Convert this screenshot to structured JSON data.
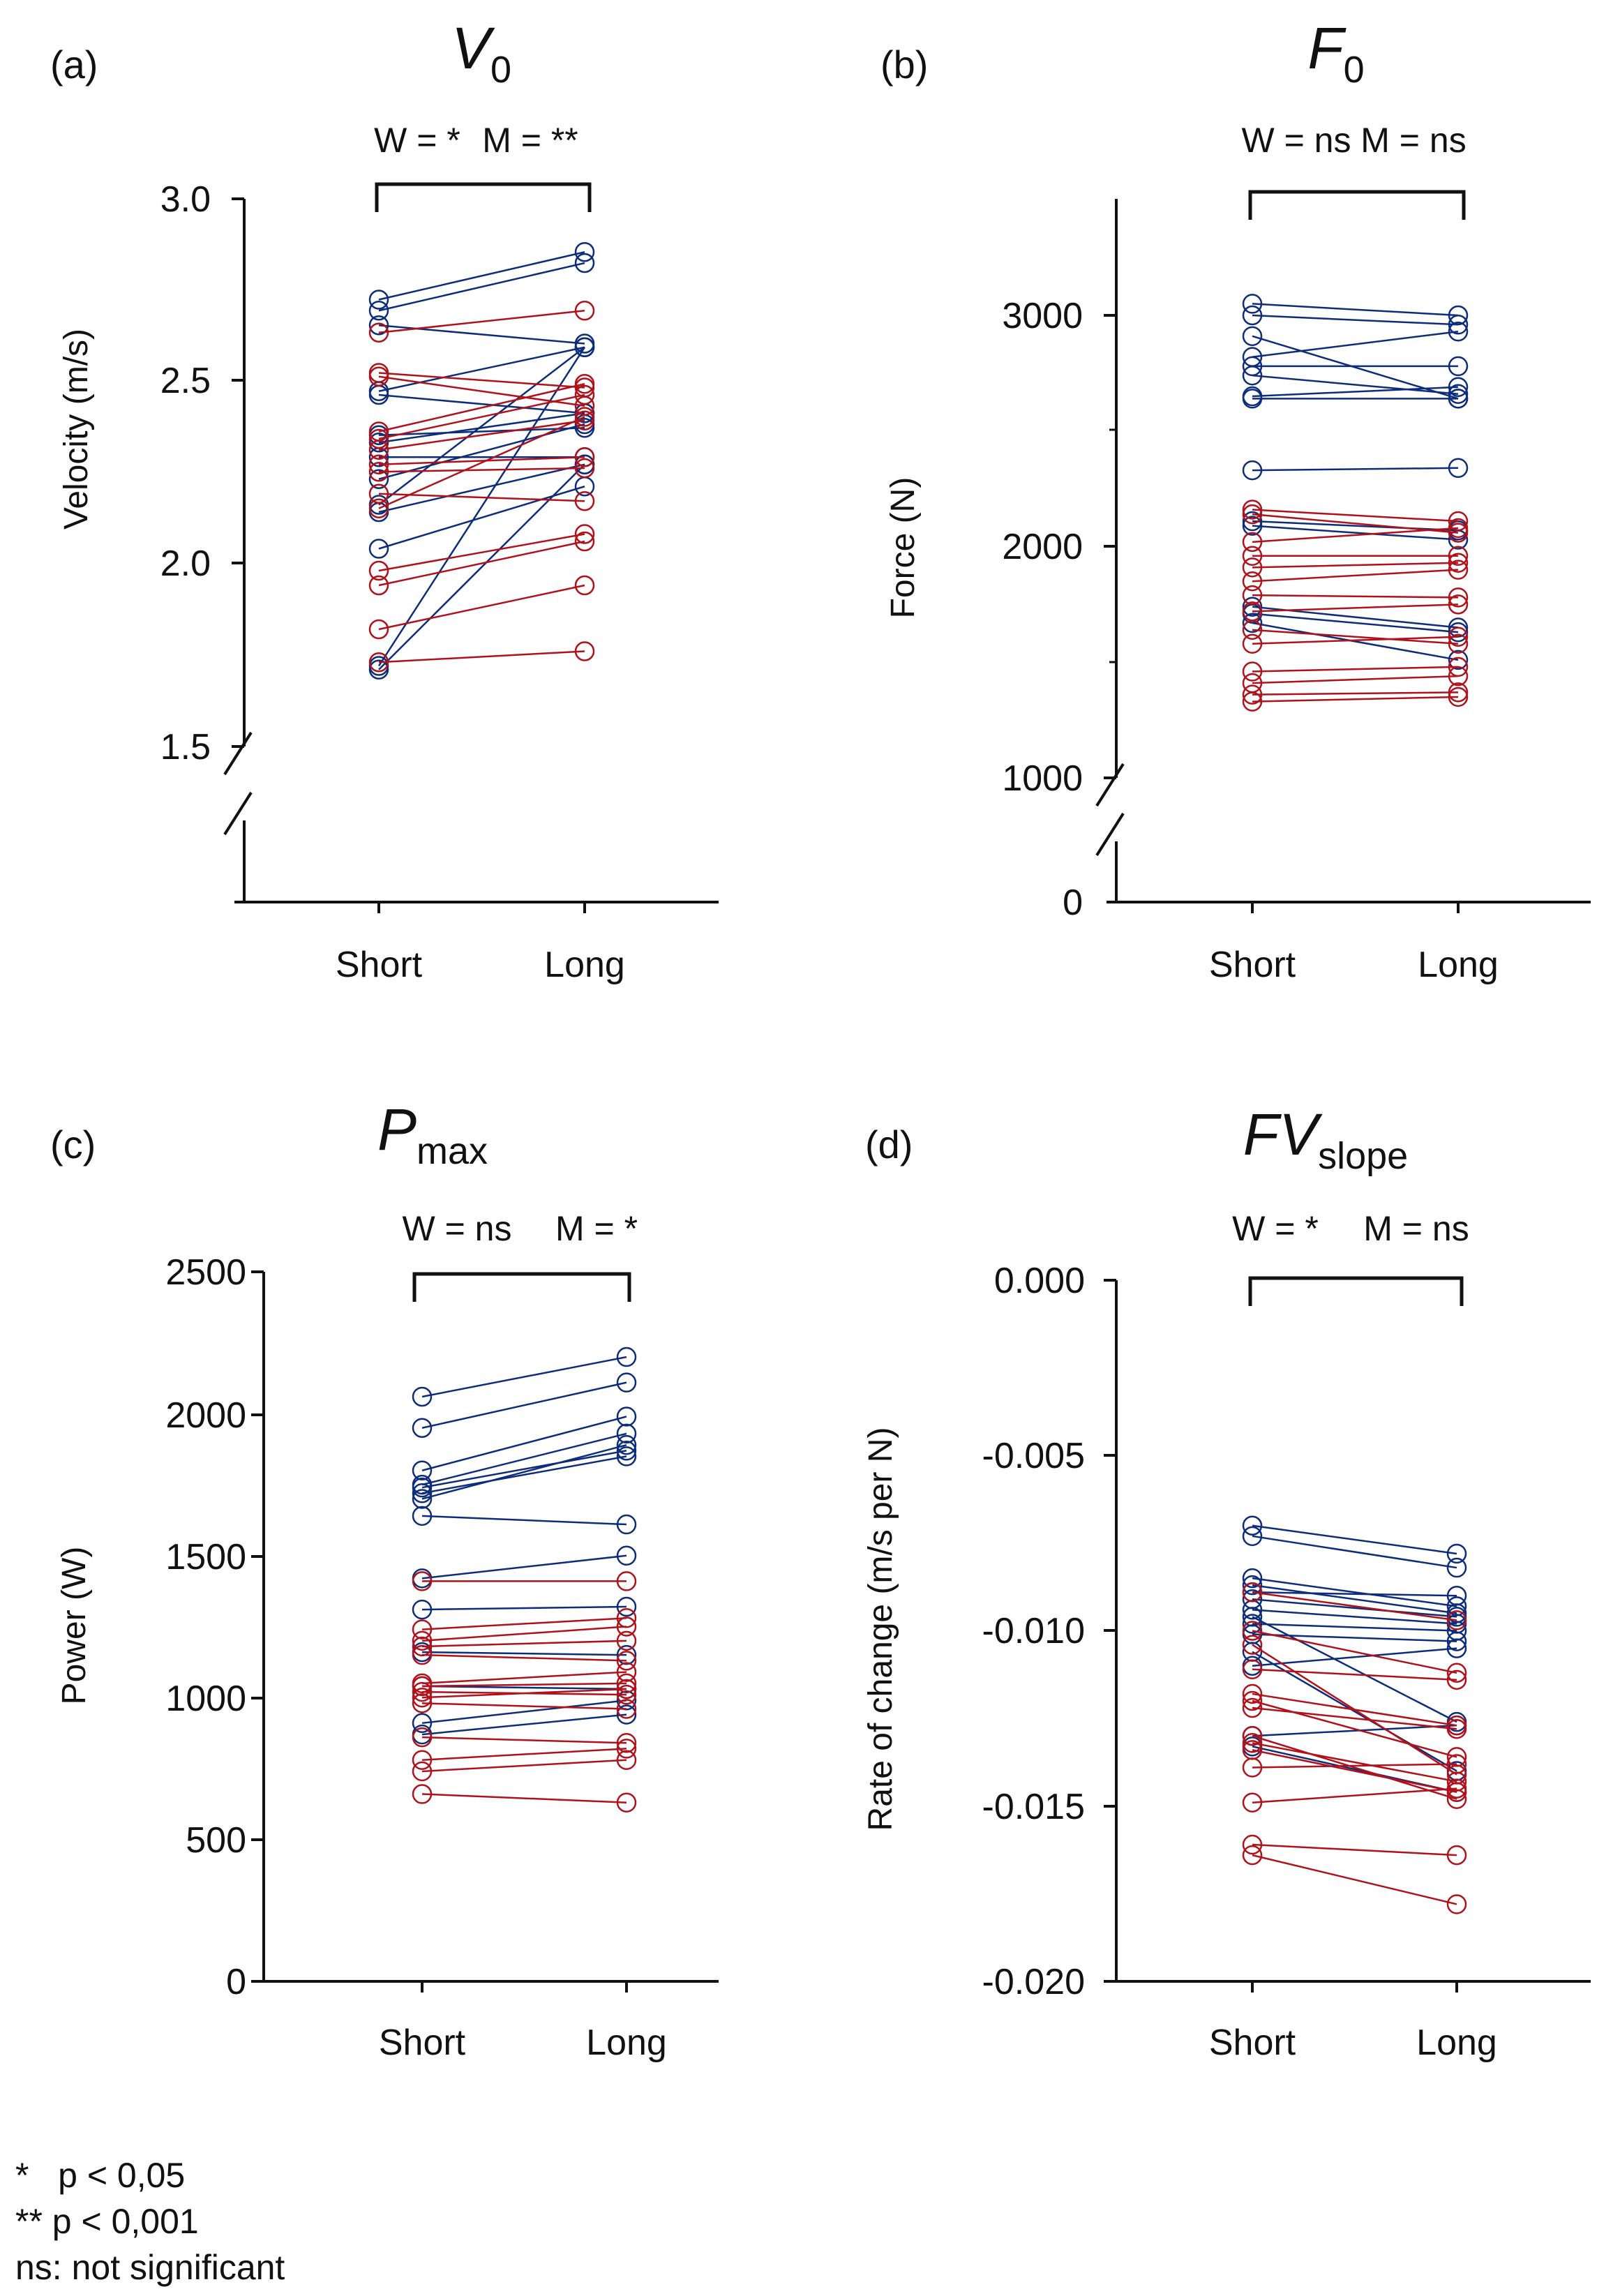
{
  "colors": {
    "women": "#b0121b",
    "men": "#0d2d7a",
    "axis": "#111111"
  },
  "legend": {
    "line1": "*   p < 0,05",
    "line2": "** p < 0,001",
    "line3": "ns: not significant"
  },
  "chart_data": [
    {
      "panel": "(a)",
      "type": "line",
      "title": "V",
      "title_sub": "0",
      "annotation_w": "W = *",
      "annotation_m": "M = **",
      "ylabel": "Velocity (m/s)",
      "categories": [
        "Short",
        "Long"
      ],
      "ylim": [
        1.5,
        3.0
      ],
      "yticks": [
        "1.5",
        "2.0",
        "2.5",
        "3.0"
      ],
      "axis_break": true,
      "series": [
        {
          "group": "men",
          "values": [
            [
              2.72,
              2.85
            ],
            [
              2.69,
              2.82
            ],
            [
              2.65,
              2.6
            ],
            [
              2.47,
              2.59
            ],
            [
              2.46,
              2.41
            ],
            [
              2.35,
              2.37
            ],
            [
              2.33,
              2.41
            ],
            [
              2.29,
              2.29
            ],
            [
              2.23,
              2.38
            ],
            [
              2.16,
              2.59
            ],
            [
              2.14,
              2.27
            ],
            [
              2.04,
              2.21
            ],
            [
              1.72,
              2.59
            ],
            [
              1.71,
              2.27
            ]
          ]
        },
        {
          "group": "women",
          "values": [
            [
              2.63,
              2.69
            ],
            [
              2.52,
              2.48
            ],
            [
              2.51,
              2.43
            ],
            [
              2.36,
              2.49
            ],
            [
              2.34,
              2.46
            ],
            [
              2.31,
              2.39
            ],
            [
              2.27,
              2.29
            ],
            [
              2.25,
              2.26
            ],
            [
              2.19,
              2.17
            ],
            [
              2.15,
              2.4
            ],
            [
              1.98,
              2.08
            ],
            [
              1.94,
              2.06
            ],
            [
              1.82,
              1.94
            ],
            [
              1.73,
              1.76
            ]
          ]
        }
      ]
    },
    {
      "panel": "(b)",
      "type": "line",
      "title": "F",
      "title_sub": "0",
      "annotation_w": "W = ns",
      "annotation_m": "M = ns",
      "ylabel": "Force (N)",
      "categories": [
        "Short",
        "Long"
      ],
      "ylim": [
        1000,
        3500
      ],
      "yticks": [
        "0",
        "1000",
        "2000",
        "3000"
      ],
      "axis_break": true,
      "series": [
        {
          "group": "men",
          "values": [
            [
              3050,
              3000
            ],
            [
              3000,
              2960
            ],
            [
              2910,
              2640
            ],
            [
              2820,
              2930
            ],
            [
              2780,
              2780
            ],
            [
              2740,
              2660
            ],
            [
              2650,
              2690
            ],
            [
              2640,
              2640
            ],
            [
              2330,
              2340
            ],
            [
              2110,
              2070
            ],
            [
              2090,
              2030
            ],
            [
              1740,
              1650
            ],
            [
              1710,
              1630
            ],
            [
              1670,
              1510
            ]
          ]
        },
        {
          "group": "women",
          "values": [
            [
              2160,
              2110
            ],
            [
              2140,
              2060
            ],
            [
              2020,
              2080
            ],
            [
              1960,
              1960
            ],
            [
              1910,
              1930
            ],
            [
              1850,
              1900
            ],
            [
              1790,
              1780
            ],
            [
              1720,
              1750
            ],
            [
              1640,
              1580
            ],
            [
              1580,
              1610
            ],
            [
              1460,
              1480
            ],
            [
              1410,
              1440
            ],
            [
              1360,
              1370
            ],
            [
              1330,
              1350
            ]
          ]
        }
      ]
    },
    {
      "panel": "(c)",
      "type": "line",
      "title": "P",
      "title_sub": "max",
      "annotation_w": "W = ns",
      "annotation_m": "M = *",
      "ylabel": "Power (W)",
      "categories": [
        "Short",
        "Long"
      ],
      "ylim": [
        0,
        2500
      ],
      "yticks": [
        "0",
        "500",
        "1000",
        "1500",
        "2000",
        "2500"
      ],
      "axis_break": false,
      "series": [
        {
          "group": "men",
          "values": [
            [
              2060,
              2200
            ],
            [
              1950,
              2110
            ],
            [
              1800,
              1990
            ],
            [
              1750,
              1930
            ],
            [
              1740,
              1870
            ],
            [
              1720,
              1850
            ],
            [
              1700,
              1890
            ],
            [
              1640,
              1610
            ],
            [
              1420,
              1500
            ],
            [
              1310,
              1320
            ],
            [
              1160,
              1150
            ],
            [
              1040,
              1030
            ],
            [
              910,
              990
            ],
            [
              870,
              940
            ]
          ]
        },
        {
          "group": "women",
          "values": [
            [
              1410,
              1410
            ],
            [
              1240,
              1280
            ],
            [
              1200,
              1250
            ],
            [
              1180,
              1200
            ],
            [
              1150,
              1130
            ],
            [
              1050,
              1090
            ],
            [
              1040,
              1050
            ],
            [
              1020,
              1010
            ],
            [
              1000,
              1030
            ],
            [
              980,
              960
            ],
            [
              860,
              840
            ],
            [
              780,
              820
            ],
            [
              740,
              780
            ],
            [
              660,
              630
            ]
          ]
        }
      ]
    },
    {
      "panel": "(d)",
      "type": "line",
      "title": "FV",
      "title_sub": "slope",
      "annotation_w": "W = *",
      "annotation_m": "M = ns",
      "ylabel": "Rate of change (m/s per N)",
      "categories": [
        "Short",
        "Long"
      ],
      "ylim": [
        -0.02,
        0.0
      ],
      "yticks": [
        "-0.020",
        "-0.015",
        "-0.010",
        "-0.005",
        "0.000"
      ],
      "axis_break": false,
      "series": [
        {
          "group": "men",
          "values": [
            [
              -0.007,
              -0.0078
            ],
            [
              -0.0073,
              -0.0082
            ],
            [
              -0.0085,
              -0.0093
            ],
            [
              -0.0087,
              -0.0095
            ],
            [
              -0.0089,
              -0.009
            ],
            [
              -0.0091,
              -0.0096
            ],
            [
              -0.0094,
              -0.0098
            ],
            [
              -0.0096,
              -0.0126
            ],
            [
              -0.0098,
              -0.01
            ],
            [
              -0.0101,
              -0.0103
            ],
            [
              -0.0106,
              -0.014
            ],
            [
              -0.011,
              -0.0105
            ],
            [
              -0.013,
              -0.0127
            ],
            [
              -0.0133,
              -0.0146
            ]
          ]
        },
        {
          "group": "women",
          "values": [
            [
              -0.0089,
              -0.0097
            ],
            [
              -0.01,
              -0.0112
            ],
            [
              -0.0104,
              -0.0141
            ],
            [
              -0.0111,
              -0.0114
            ],
            [
              -0.0118,
              -0.0127
            ],
            [
              -0.012,
              -0.0136
            ],
            [
              -0.0122,
              -0.0128
            ],
            [
              -0.013,
              -0.0148
            ],
            [
              -0.0132,
              -0.0143
            ],
            [
              -0.0134,
              -0.0146
            ],
            [
              -0.0139,
              -0.0138
            ],
            [
              -0.0149,
              -0.0145
            ],
            [
              -0.0161,
              -0.0164
            ],
            [
              -0.0164,
              -0.0178
            ]
          ]
        }
      ]
    }
  ]
}
